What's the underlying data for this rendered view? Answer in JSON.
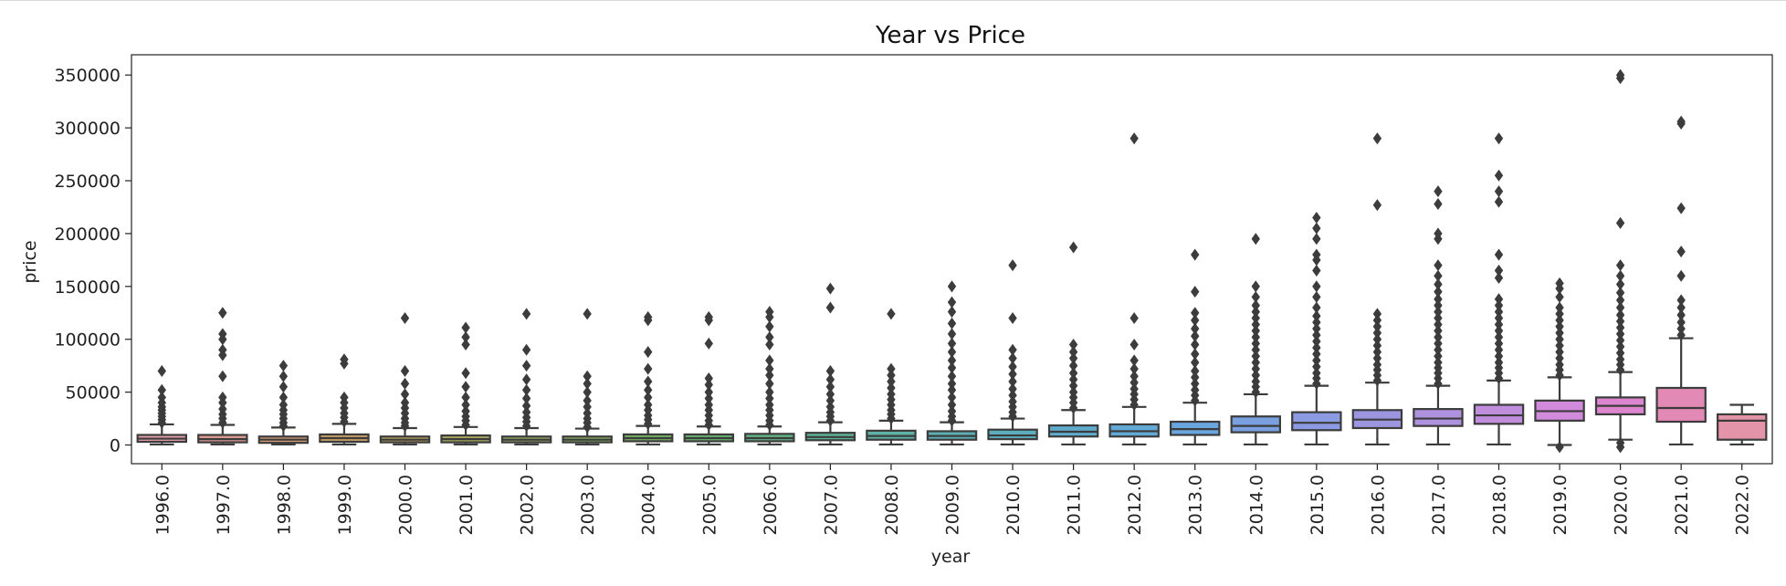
{
  "chart_data": {
    "type": "box",
    "title": "Year vs Price",
    "xlabel": "year",
    "ylabel": "price",
    "ylim": [
      -18000,
      368000
    ],
    "yticks": [
      0,
      50000,
      100000,
      150000,
      200000,
      250000,
      300000,
      350000
    ],
    "ytick_labels": [
      "0",
      "50000",
      "100000",
      "150000",
      "200000",
      "250000",
      "300000",
      "350000"
    ],
    "grid": false,
    "legend": "none",
    "categories": [
      "1996.0",
      "1997.0",
      "1998.0",
      "1999.0",
      "2000.0",
      "2001.0",
      "2002.0",
      "2003.0",
      "2004.0",
      "2005.0",
      "2006.0",
      "2007.0",
      "2008.0",
      "2009.0",
      "2010.0",
      "2011.0",
      "2012.0",
      "2013.0",
      "2014.0",
      "2015.0",
      "2016.0",
      "2017.0",
      "2018.0",
      "2019.0",
      "2020.0",
      "2021.0",
      "2022.0"
    ],
    "colors": [
      "#e39ea8",
      "#dc9a8f",
      "#d49a74",
      "#c99f64",
      "#b8a35f",
      "#a8a85f",
      "#98ab5f",
      "#86ae5f",
      "#74b160",
      "#64b36d",
      "#5fb283",
      "#5eb196",
      "#5db1a6",
      "#5dafb2",
      "#5daebd",
      "#5eaccb",
      "#62a9d8",
      "#6aa5de",
      "#7aa0e0",
      "#8b9ae1",
      "#9c96e1",
      "#ae92e0",
      "#c18ede",
      "#d28adc",
      "#dd86cf",
      "#e289b6",
      "#e494a8"
    ],
    "boxes": [
      {
        "q1": 3000,
        "median": 6000,
        "q3": 9500,
        "whislo": 500,
        "whishi": 19500,
        "fliers": [
          21000,
          24000,
          27000,
          30000,
          33000,
          36000,
          40000,
          45000,
          52000,
          70000
        ]
      },
      {
        "q1": 2500,
        "median": 5500,
        "q3": 9500,
        "whislo": 500,
        "whishi": 19000,
        "fliers": [
          21000,
          25000,
          29000,
          34000,
          40000,
          45000,
          65000,
          85000,
          90000,
          100000,
          105000,
          125000
        ]
      },
      {
        "q1": 2000,
        "median": 5000,
        "q3": 8000,
        "whislo": 500,
        "whishi": 16500,
        "fliers": [
          18000,
          21000,
          25000,
          29000,
          33000,
          38000,
          45000,
          55000,
          65000,
          75000
        ]
      },
      {
        "q1": 3000,
        "median": 6500,
        "q3": 10000,
        "whislo": 500,
        "whishi": 20000,
        "fliers": [
          22000,
          26000,
          30000,
          35000,
          40000,
          45000,
          77000,
          81000
        ]
      },
      {
        "q1": 2500,
        "median": 5000,
        "q3": 8000,
        "whislo": 500,
        "whishi": 16000,
        "fliers": [
          18000,
          21000,
          25000,
          30000,
          35000,
          40000,
          48000,
          58000,
          70000,
          120000
        ]
      },
      {
        "q1": 2500,
        "median": 5500,
        "q3": 9000,
        "whislo": 500,
        "whishi": 17000,
        "fliers": [
          19000,
          23000,
          27000,
          32000,
          38000,
          45000,
          55000,
          68000,
          95000,
          102000,
          111000
        ]
      },
      {
        "q1": 2500,
        "median": 5000,
        "q3": 8000,
        "whislo": 500,
        "whishi": 16000,
        "fliers": [
          18000,
          22000,
          26000,
          31000,
          37000,
          44000,
          52000,
          62000,
          75000,
          90000,
          124000
        ]
      },
      {
        "q1": 2500,
        "median": 5000,
        "q3": 8000,
        "whislo": 500,
        "whishi": 15500,
        "fliers": [
          17000,
          21000,
          25000,
          30000,
          36000,
          42000,
          50000,
          58000,
          65000,
          124000
        ]
      },
      {
        "q1": 3500,
        "median": 6500,
        "q3": 10000,
        "whislo": 500,
        "whishi": 18000,
        "fliers": [
          20000,
          24000,
          28000,
          33000,
          38000,
          45000,
          52000,
          60000,
          72000,
          88000,
          118000,
          121000
        ]
      },
      {
        "q1": 3500,
        "median": 6500,
        "q3": 10000,
        "whislo": 500,
        "whishi": 17500,
        "fliers": [
          19000,
          23000,
          28000,
          33000,
          38000,
          44000,
          50000,
          57000,
          63000,
          96000,
          118000,
          121000
        ]
      },
      {
        "q1": 3500,
        "median": 6500,
        "q3": 10500,
        "whislo": 500,
        "whishi": 17500,
        "fliers": [
          19000,
          23000,
          28000,
          33000,
          38000,
          44000,
          50000,
          58000,
          66000,
          72000,
          80000,
          95000,
          102000,
          112000,
          121000,
          126000
        ]
      },
      {
        "q1": 4500,
        "median": 7500,
        "q3": 11500,
        "whislo": 500,
        "whishi": 21500,
        "fliers": [
          23000,
          27000,
          31000,
          36000,
          42000,
          48000,
          55000,
          62000,
          70000,
          130000,
          148000
        ]
      },
      {
        "q1": 5000,
        "median": 8500,
        "q3": 13500,
        "whislo": 500,
        "whishi": 23000,
        "fliers": [
          25000,
          29000,
          33000,
          38000,
          43000,
          48000,
          54000,
          60000,
          66000,
          72000,
          124000
        ]
      },
      {
        "q1": 5000,
        "median": 8500,
        "q3": 13000,
        "whislo": 500,
        "whishi": 21500,
        "fliers": [
          23000,
          27000,
          32000,
          38000,
          45000,
          52000,
          58000,
          65000,
          73000,
          80000,
          88000,
          96000,
          105000,
          115000,
          126000,
          135000,
          150000
        ]
      },
      {
        "q1": 5500,
        "median": 9000,
        "q3": 14500,
        "whislo": 500,
        "whishi": 25000,
        "fliers": [
          27000,
          31000,
          36000,
          41000,
          47000,
          53000,
          60000,
          67000,
          74000,
          82000,
          90000,
          120000,
          170000
        ]
      },
      {
        "q1": 8000,
        "median": 12500,
        "q3": 18500,
        "whislo": 500,
        "whishi": 33000,
        "fliers": [
          35000,
          40000,
          45000,
          50000,
          56000,
          62000,
          68000,
          75000,
          82000,
          88000,
          95000,
          187000
        ]
      },
      {
        "q1": 8000,
        "median": 13000,
        "q3": 19500,
        "whislo": 500,
        "whishi": 36000,
        "fliers": [
          38000,
          43000,
          48000,
          53000,
          59000,
          65000,
          72000,
          80000,
          95000,
          120000,
          290000
        ]
      },
      {
        "q1": 9500,
        "median": 15000,
        "q3": 22000,
        "whislo": 500,
        "whishi": 40000,
        "fliers": [
          42000,
          47000,
          52000,
          58000,
          64000,
          70000,
          78000,
          86000,
          95000,
          103000,
          110000,
          118000,
          125000,
          145000,
          180000
        ]
      },
      {
        "q1": 12000,
        "median": 18000,
        "q3": 27000,
        "whislo": 500,
        "whishi": 48000,
        "fliers": [
          50000,
          55000,
          60000,
          66000,
          72000,
          78000,
          84000,
          90000,
          96000,
          102000,
          108000,
          114000,
          120000,
          126000,
          132000,
          140000,
          150000,
          195000
        ]
      },
      {
        "q1": 14000,
        "median": 21000,
        "q3": 31000,
        "whislo": 500,
        "whishi": 56000,
        "fliers": [
          58000,
          63000,
          68000,
          74000,
          80000,
          86000,
          92000,
          98000,
          104000,
          110000,
          116000,
          122000,
          130000,
          140000,
          150000,
          165000,
          175000,
          180000,
          195000,
          205000,
          215000
        ]
      },
      {
        "q1": 16000,
        "median": 24000,
        "q3": 33000,
        "whislo": 500,
        "whishi": 59000,
        "fliers": [
          61000,
          66000,
          71000,
          76000,
          82000,
          88000,
          94000,
          100000,
          106000,
          112000,
          118000,
          124000,
          227000,
          290000
        ]
      },
      {
        "q1": 18000,
        "median": 25000,
        "q3": 34000,
        "whislo": 500,
        "whishi": 56000,
        "fliers": [
          58000,
          63000,
          68000,
          73000,
          78000,
          84000,
          90000,
          96000,
          102000,
          108000,
          114000,
          120000,
          126000,
          132000,
          138000,
          145000,
          152000,
          160000,
          170000,
          195000,
          200000,
          228000,
          240000
        ]
      },
      {
        "q1": 20000,
        "median": 28000,
        "q3": 38000,
        "whislo": 500,
        "whishi": 61000,
        "fliers": [
          63000,
          68000,
          73000,
          78000,
          84000,
          90000,
          96000,
          102000,
          108000,
          114000,
          120000,
          126000,
          132000,
          138000,
          158000,
          165000,
          180000,
          230000,
          240000,
          255000,
          290000
        ]
      },
      {
        "q1": 23000,
        "median": 32000,
        "q3": 42000,
        "whislo": 0,
        "whishi": 64000,
        "fliers": [
          -2000,
          66000,
          71000,
          76000,
          82000,
          88000,
          94000,
          100000,
          106000,
          112000,
          118000,
          124000,
          130000,
          140000,
          148000,
          153000
        ]
      },
      {
        "q1": 29000,
        "median": 37000,
        "q3": 45000,
        "whislo": 5000,
        "whishi": 69000,
        "fliers": [
          -2000,
          2000,
          71000,
          76000,
          81000,
          87000,
          93000,
          99000,
          105000,
          111000,
          117000,
          123000,
          130000,
          137000,
          144000,
          152000,
          160000,
          170000,
          210000,
          347000,
          350000
        ]
      },
      {
        "q1": 22000,
        "median": 35000,
        "q3": 54000,
        "whislo": 500,
        "whishi": 101000,
        "fliers": [
          104000,
          110000,
          116000,
          123000,
          130000,
          137000,
          160000,
          183000,
          224000,
          304000,
          306000
        ]
      },
      {
        "q1": 5000,
        "median": 23000,
        "q3": 29000,
        "whislo": 500,
        "whishi": 38000,
        "fliers": []
      }
    ]
  }
}
